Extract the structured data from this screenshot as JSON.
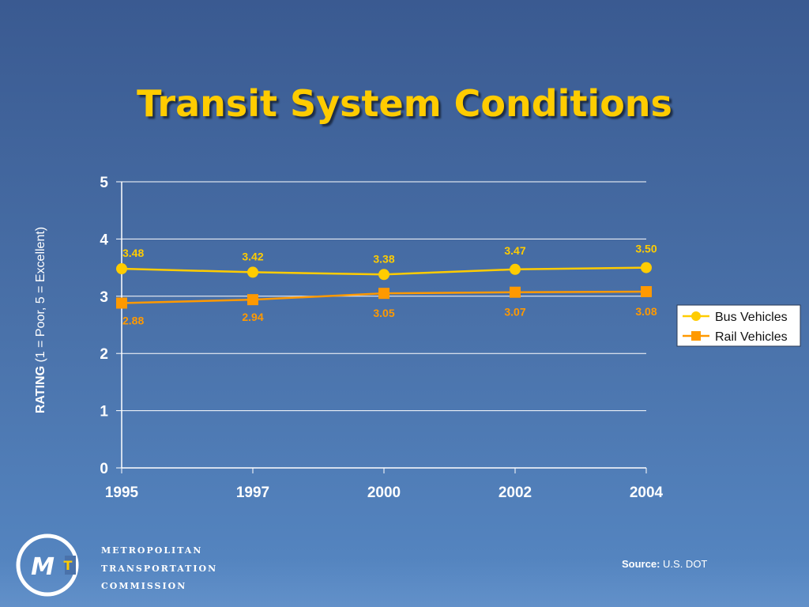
{
  "slide": {
    "title": "Transit System Conditions",
    "source_label": "Source:",
    "source_value": "U.S. DOT",
    "org_lines": [
      "METROPOLITAN",
      "TRANSPORTATION",
      "COMMISSION"
    ],
    "logo_text": "MT"
  },
  "chart_data": {
    "type": "line",
    "title": "",
    "ylabel_bold": "RATING",
    "ylabel_rest": " (1 = Poor, 5 = Excellent)",
    "xlabel": "",
    "categories": [
      "1995",
      "1997",
      "2000",
      "2002",
      "2004"
    ],
    "ylim": [
      0,
      5
    ],
    "yticks": [
      0,
      1,
      2,
      3,
      4,
      5
    ],
    "grid": true,
    "legend_position": "right",
    "series": [
      {
        "name": "Bus Vehicles",
        "marker": "circle",
        "color": "#ffcc00",
        "values": [
          3.48,
          3.42,
          3.38,
          3.47,
          3.5
        ],
        "labels": [
          "3.48",
          "3.42",
          "3.38",
          "3.47",
          "3.50"
        ]
      },
      {
        "name": "Rail Vehicles",
        "marker": "square",
        "color": "#ff9900",
        "values": [
          2.88,
          2.94,
          3.05,
          3.07,
          3.08
        ],
        "labels": [
          "2.88",
          "2.94",
          "3.05",
          "3.07",
          "3.08"
        ]
      }
    ]
  }
}
